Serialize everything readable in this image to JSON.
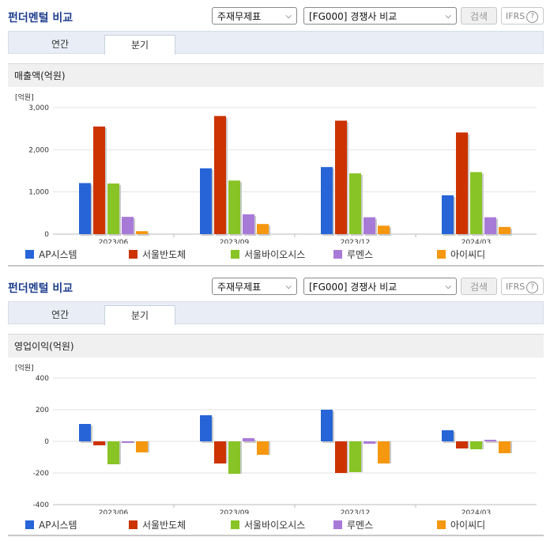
{
  "series_names": [
    "AP시스템",
    "서울반도체",
    "서울바이오시스",
    "루멘스",
    "아이씨디"
  ],
  "series_colors": [
    "#2664d8",
    "#cc3300",
    "#88c425",
    "#a87ad8",
    "#f5970f"
  ],
  "panels": [
    {
      "title": "펀더멘털 비교",
      "select1": "주재무제표",
      "select2": "[FG000] 경쟁사 비교",
      "search_label": "검색",
      "ifrs_label": "IFRS",
      "ifrs_help": "?",
      "tab_annual": "연간",
      "tab_quarter": "분기",
      "subtitle": "매출액(억원)",
      "unit": "[억원]"
    },
    {
      "title": "펀더멘털 비교",
      "select1": "주재무제표",
      "select2": "[FG000] 경쟁사 비교",
      "search_label": "검색",
      "ifrs_label": "IFRS",
      "ifrs_help": "?",
      "tab_annual": "연간",
      "tab_quarter": "분기",
      "subtitle": "영업이익(억원)",
      "unit": "[억원]"
    }
  ],
  "chart_data": [
    {
      "type": "bar",
      "title": "매출액(억원)",
      "ylabel": "[억원]",
      "categories": [
        "2023/06",
        "2023/09",
        "2023/12",
        "2024/03"
      ],
      "ylim": [
        0,
        3000
      ],
      "yticks": [
        0,
        1000,
        2000,
        3000
      ],
      "ytick_labels": [
        "0",
        "1,000",
        "2,000",
        "3,000"
      ],
      "grid": true,
      "legend_position": "bottom",
      "series": [
        {
          "name": "AP시스템",
          "values": [
            1210,
            1560,
            1590,
            920
          ]
        },
        {
          "name": "서울반도체",
          "values": [
            2550,
            2800,
            2690,
            2410
          ]
        },
        {
          "name": "서울바이오시스",
          "values": [
            1200,
            1270,
            1440,
            1470
          ]
        },
        {
          "name": "루멘스",
          "values": [
            410,
            470,
            400,
            400
          ]
        },
        {
          "name": "아이씨디",
          "values": [
            70,
            240,
            200,
            170
          ]
        }
      ]
    },
    {
      "type": "bar",
      "title": "영업이익(억원)",
      "ylabel": "[억원]",
      "categories": [
        "2023/06",
        "2023/09",
        "2023/12",
        "2024/03"
      ],
      "ylim": [
        -400,
        400
      ],
      "yticks": [
        -400,
        -200,
        0,
        200,
        400
      ],
      "ytick_labels": [
        "-400",
        "-200",
        "0",
        "200",
        "400"
      ],
      "grid": true,
      "legend_position": "bottom",
      "series": [
        {
          "name": "AP시스템",
          "values": [
            110,
            165,
            200,
            70
          ]
        },
        {
          "name": "서울반도체",
          "values": [
            -25,
            -140,
            -200,
            -45
          ]
        },
        {
          "name": "서울바이오시스",
          "values": [
            -145,
            -205,
            -195,
            -50
          ]
        },
        {
          "name": "루멘스",
          "values": [
            -10,
            20,
            -15,
            10
          ]
        },
        {
          "name": "아이씨디",
          "values": [
            -70,
            -85,
            -140,
            -75
          ]
        }
      ]
    }
  ]
}
